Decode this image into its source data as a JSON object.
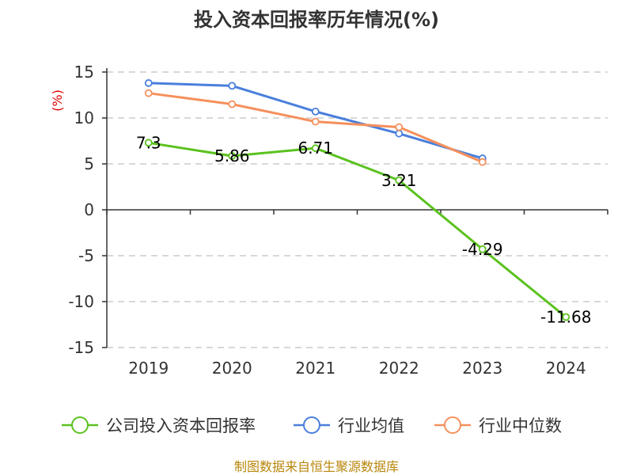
{
  "chart_data": {
    "type": "line",
    "title": "投入资本回报率历年情况(%)",
    "ylabel": "(%)",
    "xlabel": "",
    "categories": [
      "2019",
      "2020",
      "2021",
      "2022",
      "2023",
      "2024"
    ],
    "ylim": [
      -15,
      15
    ],
    "yticks": [
      15,
      10,
      5,
      0,
      -5,
      -10,
      -15
    ],
    "grid": true,
    "legend_position": "bottom",
    "series": [
      {
        "name": "公司投入资本回报率",
        "color": "#5bc21f",
        "values": [
          7.3,
          5.86,
          6.71,
          3.21,
          -4.29,
          -11.68
        ],
        "data_labels": [
          "7.3",
          "5.86",
          "6.71",
          "3.21",
          "-4.29",
          "-11.68"
        ]
      },
      {
        "name": "行业均值",
        "color": "#4a7fdc",
        "values": [
          13.8,
          13.5,
          10.7,
          8.3,
          5.6,
          null
        ]
      },
      {
        "name": "行业中位数",
        "color": "#f5905c",
        "values": [
          12.7,
          11.5,
          9.6,
          9.0,
          5.2,
          null
        ]
      }
    ]
  },
  "source_note": "制图数据来自恒生聚源数据库"
}
